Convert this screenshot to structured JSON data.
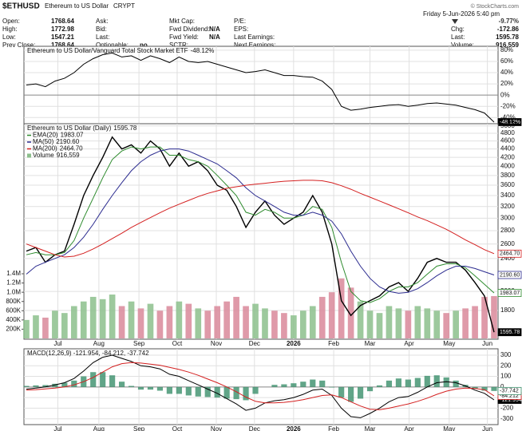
{
  "header": {
    "symbol": "$ETHUSD",
    "name": "Ethereum to US Dollar",
    "exchange": "CRYPT",
    "credit": "© StockCharts.com",
    "date": "Friday 5-Jun-2026 5:40 pm",
    "change_pct": "-9.77%",
    "columns": [
      [
        {
          "label": "Open:",
          "value": "1768.64"
        },
        {
          "label": "High:",
          "value": "1772.98"
        },
        {
          "label": "Low:",
          "value": "1547.21"
        },
        {
          "label": "Prev Close:",
          "value": "1768.64"
        }
      ],
      [
        {
          "label": "Ask:"
        },
        {
          "label": "Bid:"
        },
        {
          "label": "Last:"
        },
        {
          "label": "Optionable:",
          "value": "no"
        }
      ],
      [
        {
          "label": "Mkt Cap:"
        },
        {
          "label": "Fwd Dividend:",
          "value": "N/A"
        },
        {
          "label": "Fwd Yield:",
          "value": "N/A"
        },
        {
          "label": "SCTR:"
        }
      ],
      [
        {
          "label": "P/E:"
        },
        {
          "label": "EPS:"
        },
        {
          "label": "Last Earnings:"
        },
        {
          "label": "Next Earnings:"
        }
      ]
    ],
    "right": [
      {
        "label": "Chg:",
        "value": "-172.86"
      },
      {
        "label": "Last:",
        "value": "1595.78"
      },
      {
        "label": "Volume:",
        "value": "916,559"
      }
    ]
  },
  "chart_data": [
    {
      "type": "line",
      "ylim": [
        -51,
        87
      ],
      "yticks": [
        {
          "value": 80,
          "label": "80%"
        },
        {
          "value": 60,
          "label": "60%"
        },
        {
          "value": 40,
          "label": "40%"
        },
        {
          "value": 20,
          "label": "20%"
        },
        {
          "value": 0,
          "label": "0%"
        },
        {
          "value": -20,
          "label": "-20%"
        },
        {
          "value": -40,
          "label": "-40%"
        }
      ],
      "series": [
        {
          "name": "Ethereum to US Dollar/Vanguard Total Stock Market ETF",
          "value_label": "-48.12%",
          "color": "#000000",
          "values": [
            18,
            20,
            15,
            25,
            30,
            40,
            55,
            65,
            72,
            75,
            68,
            70,
            62,
            70,
            65,
            58,
            68,
            60,
            58,
            60,
            55,
            50,
            45,
            40,
            42,
            45,
            40,
            35,
            35,
            33,
            32,
            25,
            10,
            -20,
            -27,
            -25,
            -22,
            -20,
            -18,
            -17,
            -20,
            -18,
            -15,
            -14,
            -16,
            -18,
            -22,
            -26,
            -32,
            -48.12
          ]
        }
      ]
    },
    {
      "type": "line",
      "log": true,
      "ylim": [
        1535,
        5060
      ],
      "yticks": [
        1800,
        2000,
        2400,
        2600,
        2800,
        3000,
        3200,
        3400,
        3600,
        3800,
        4000,
        4200,
        4400,
        4600,
        4800,
        5000
      ],
      "xticks": [
        {
          "value": 3.3,
          "label": "Jul"
        },
        {
          "value": 7.6,
          "label": "Aug"
        },
        {
          "value": 11.8,
          "label": "Sep"
        },
        {
          "value": 15.8,
          "label": "Oct"
        },
        {
          "value": 19.9,
          "label": "Nov"
        },
        {
          "value": 23.9,
          "label": "Dec"
        },
        {
          "value": 28.0,
          "label": "2026"
        },
        {
          "value": 32.2,
          "label": "Feb"
        },
        {
          "value": 36.0,
          "label": "Mar"
        },
        {
          "value": 40.1,
          "label": "Apr"
        },
        {
          "value": 44.3,
          "label": "May"
        },
        {
          "value": 48.3,
          "label": "Jun"
        }
      ],
      "series": [
        {
          "name": "Ethereum to US Dollar (Daily)",
          "value_label": "1595.78",
          "color": "#000000",
          "values": [
            2500,
            2550,
            2350,
            2450,
            2500,
            2900,
            3400,
            3800,
            4200,
            4700,
            4400,
            4500,
            4300,
            4600,
            4400,
            4000,
            4300,
            4000,
            4100,
            3900,
            3600,
            3500,
            3200,
            2850,
            3100,
            3300,
            3050,
            2900,
            3000,
            3100,
            3400,
            3100,
            2600,
            1900,
            1750,
            1850,
            1900,
            1950,
            2050,
            2100,
            2000,
            2150,
            2350,
            2400,
            2350,
            2350,
            2250,
            2100,
            1950,
            1595.78
          ]
        },
        {
          "name": "EMA(20)",
          "value_label": "1983.07",
          "color": "#2e8b2e",
          "values": [
            2450,
            2480,
            2450,
            2450,
            2480,
            2650,
            3000,
            3350,
            3750,
            4150,
            4350,
            4450,
            4400,
            4450,
            4450,
            4250,
            4250,
            4150,
            4100,
            4000,
            3800,
            3600,
            3400,
            3100,
            3050,
            3150,
            3100,
            3000,
            3000,
            3050,
            3200,
            3150,
            2850,
            2350,
            2000,
            1900,
            1880,
            1920,
            2000,
            2050,
            2050,
            2100,
            2200,
            2300,
            2330,
            2330,
            2280,
            2180,
            2080,
            1983.07
          ]
        },
        {
          "name": "MA(50)",
          "value_label": "2190.60",
          "color": "#2b2b8f",
          "values": [
            2200,
            2300,
            2350,
            2400,
            2450,
            2550,
            2700,
            2900,
            3150,
            3400,
            3650,
            3900,
            4100,
            4250,
            4350,
            4400,
            4400,
            4350,
            4250,
            4150,
            4050,
            3900,
            3750,
            3550,
            3400,
            3300,
            3200,
            3100,
            3050,
            3050,
            3100,
            3050,
            2950,
            2750,
            2500,
            2300,
            2150,
            2050,
            2000,
            1980,
            1990,
            2030,
            2100,
            2180,
            2250,
            2300,
            2300,
            2270,
            2230,
            2190.6
          ]
        },
        {
          "name": "MA(200)",
          "value_label": "2464.70",
          "color": "#d42020",
          "values": [
            2600,
            2550,
            2500,
            2450,
            2420,
            2430,
            2470,
            2530,
            2600,
            2680,
            2760,
            2850,
            2930,
            3010,
            3090,
            3170,
            3240,
            3310,
            3380,
            3440,
            3490,
            3540,
            3570,
            3600,
            3620,
            3640,
            3660,
            3680,
            3690,
            3700,
            3700,
            3690,
            3650,
            3590,
            3520,
            3440,
            3370,
            3300,
            3230,
            3160,
            3090,
            3020,
            2960,
            2890,
            2820,
            2740,
            2660,
            2590,
            2520,
            2464.7
          ]
        }
      ],
      "volume": {
        "name": "Volume",
        "value_label": "916,559",
        "up_color": "#8cbf8c",
        "down_color": "#d9889a",
        "ylim": [
          0,
          1400000
        ],
        "yticks": [
          {
            "value": 1400000,
            "label": "1.4M"
          },
          {
            "value": 1200000,
            "label": "1.2M"
          },
          {
            "value": 1000000,
            "label": "1.0M"
          },
          {
            "value": 800000,
            "label": "800K"
          },
          {
            "value": 600000,
            "label": "600K"
          },
          {
            "value": 400000,
            "label": "400K"
          },
          {
            "value": 200000,
            "label": "200K"
          }
        ],
        "values": [
          400000,
          500000,
          450000,
          600000,
          550000,
          700000,
          800000,
          900000,
          850000,
          950000,
          700000,
          800000,
          650000,
          750000,
          600000,
          700000,
          800000,
          750000,
          650000,
          600000,
          700000,
          800000,
          900000,
          700000,
          750000,
          650000,
          600000,
          550000,
          500000,
          600000,
          700000,
          900000,
          1000000,
          1300000,
          1100000,
          800000,
          600000,
          550000,
          700000,
          650000,
          600000,
          700000,
          650000,
          600000,
          550000,
          600000,
          650000,
          700000,
          900000,
          916559
        ]
      }
    },
    {
      "type": "line",
      "ylim": [
        -355,
        360
      ],
      "title": "MACD(12,26,9) -121.954, -84.212, -37.742",
      "yticks": [
        300,
        200,
        100,
        0,
        -100,
        -200,
        -300
      ],
      "xticks": [
        {
          "value": 3.3,
          "label": "Jul"
        },
        {
          "value": 7.6,
          "label": "Aug"
        },
        {
          "value": 11.8,
          "label": "Sep"
        },
        {
          "value": 15.8,
          "label": "Oct"
        },
        {
          "value": 19.9,
          "label": "Nov"
        },
        {
          "value": 23.9,
          "label": "Dec"
        },
        {
          "value": 28.0,
          "label": "2026"
        },
        {
          "value": 32.2,
          "label": "Feb"
        },
        {
          "value": 36.0,
          "label": "Mar"
        },
        {
          "value": 40.1,
          "label": "Apr"
        },
        {
          "value": 44.3,
          "label": "May"
        },
        {
          "value": 48.3,
          "label": "Jun"
        }
      ],
      "series": [
        {
          "value_label": "-121.954",
          "color": "#000000",
          "values": [
            -20,
            -10,
            0,
            20,
            40,
            80,
            150,
            230,
            280,
            300,
            270,
            240,
            200,
            190,
            170,
            120,
            100,
            60,
            20,
            -20,
            -60,
            -110,
            -160,
            -220,
            -200,
            -150,
            -130,
            -120,
            -100,
            -70,
            -30,
            -20,
            -80,
            -200,
            -280,
            -290,
            -250,
            -200,
            -140,
            -100,
            -90,
            -50,
            0,
            40,
            50,
            40,
            10,
            -30,
            -60,
            -121.954
          ]
        },
        {
          "value_label": "-84.212",
          "color": "#d42020",
          "values": [
            -30,
            -25,
            -18,
            -10,
            0,
            20,
            50,
            90,
            140,
            190,
            220,
            230,
            225,
            215,
            205,
            185,
            165,
            140,
            110,
            75,
            40,
            0,
            -45,
            -95,
            -135,
            -150,
            -150,
            -145,
            -135,
            -120,
            -100,
            -80,
            -75,
            -100,
            -140,
            -180,
            -210,
            -215,
            -200,
            -180,
            -160,
            -135,
            -105,
            -70,
            -40,
            -20,
            -10,
            -15,
            -25,
            -84.212
          ]
        }
      ],
      "histogram": {
        "value_label": "-37.742",
        "color": "#3a8f6a",
        "values": [
          10,
          15,
          18,
          30,
          40,
          60,
          100,
          140,
          140,
          110,
          50,
          10,
          -25,
          -25,
          -35,
          -65,
          -65,
          -80,
          -90,
          -95,
          -100,
          -110,
          -115,
          -125,
          -65,
          0,
          20,
          25,
          35,
          50,
          70,
          60,
          -5,
          -100,
          -140,
          -110,
          -40,
          15,
          60,
          80,
          70,
          85,
          105,
          110,
          90,
          60,
          20,
          -15,
          -35,
          -37.742
        ]
      }
    }
  ]
}
